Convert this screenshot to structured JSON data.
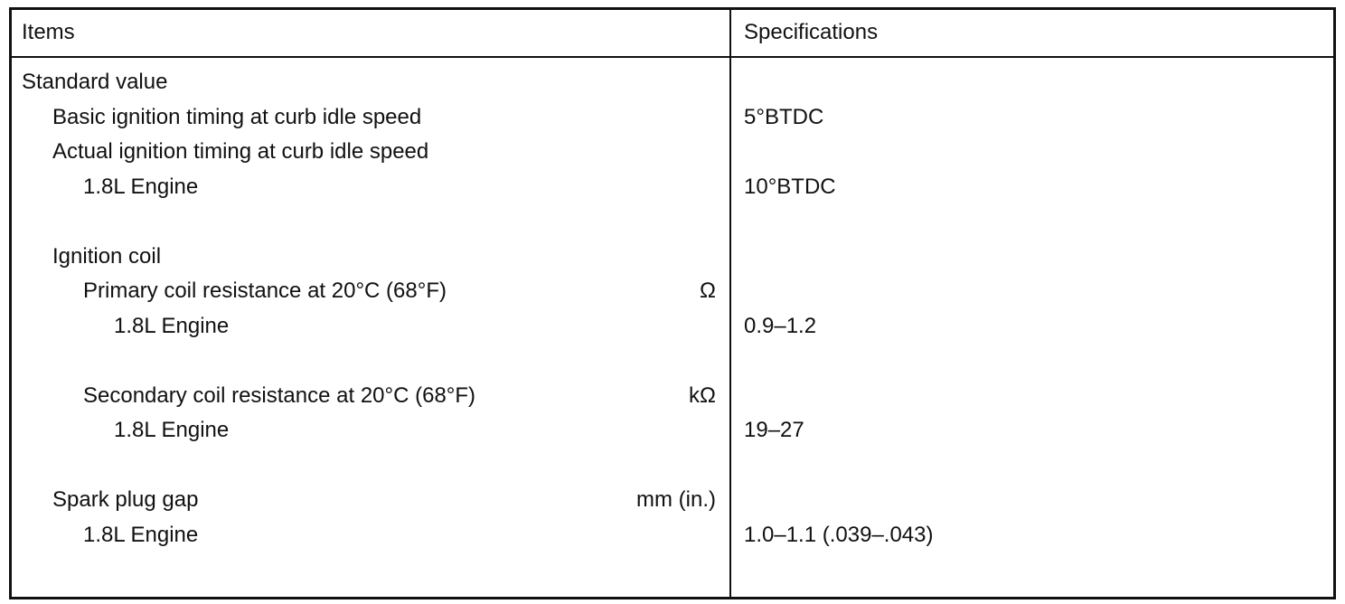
{
  "table": {
    "header": [
      "Items",
      "Specifications"
    ],
    "rows": [
      {
        "label": "Standard value",
        "children": [
          {
            "label": "Basic ignition timing at curb idle speed",
            "spec": "5°BTDC"
          },
          {
            "label": "Actual ignition timing at curb idle speed",
            "children": [
              {
                "label": "1.8L Engine",
                "spec": "10°BTDC"
              }
            ]
          },
          {
            "label": "Ignition coil",
            "children": [
              {
                "label": "Primary coil resistance at 20°C (68°F)",
                "unit": "Ω",
                "children": [
                  {
                    "label": "1.8L Engine",
                    "spec": "0.9–1.2"
                  }
                ]
              },
              {
                "label": "Secondary coil resistance at 20°C (68°F)",
                "unit": "kΩ",
                "children": [
                  {
                    "label": "1.8L Engine",
                    "spec": "19–27"
                  }
                ]
              }
            ]
          },
          {
            "label": "Spark plug gap",
            "unit": "mm (in.)",
            "children": [
              {
                "label": "1.8L Engine",
                "spec": "1.0–1.1 (.039–.043)"
              }
            ]
          }
        ]
      }
    ]
  }
}
